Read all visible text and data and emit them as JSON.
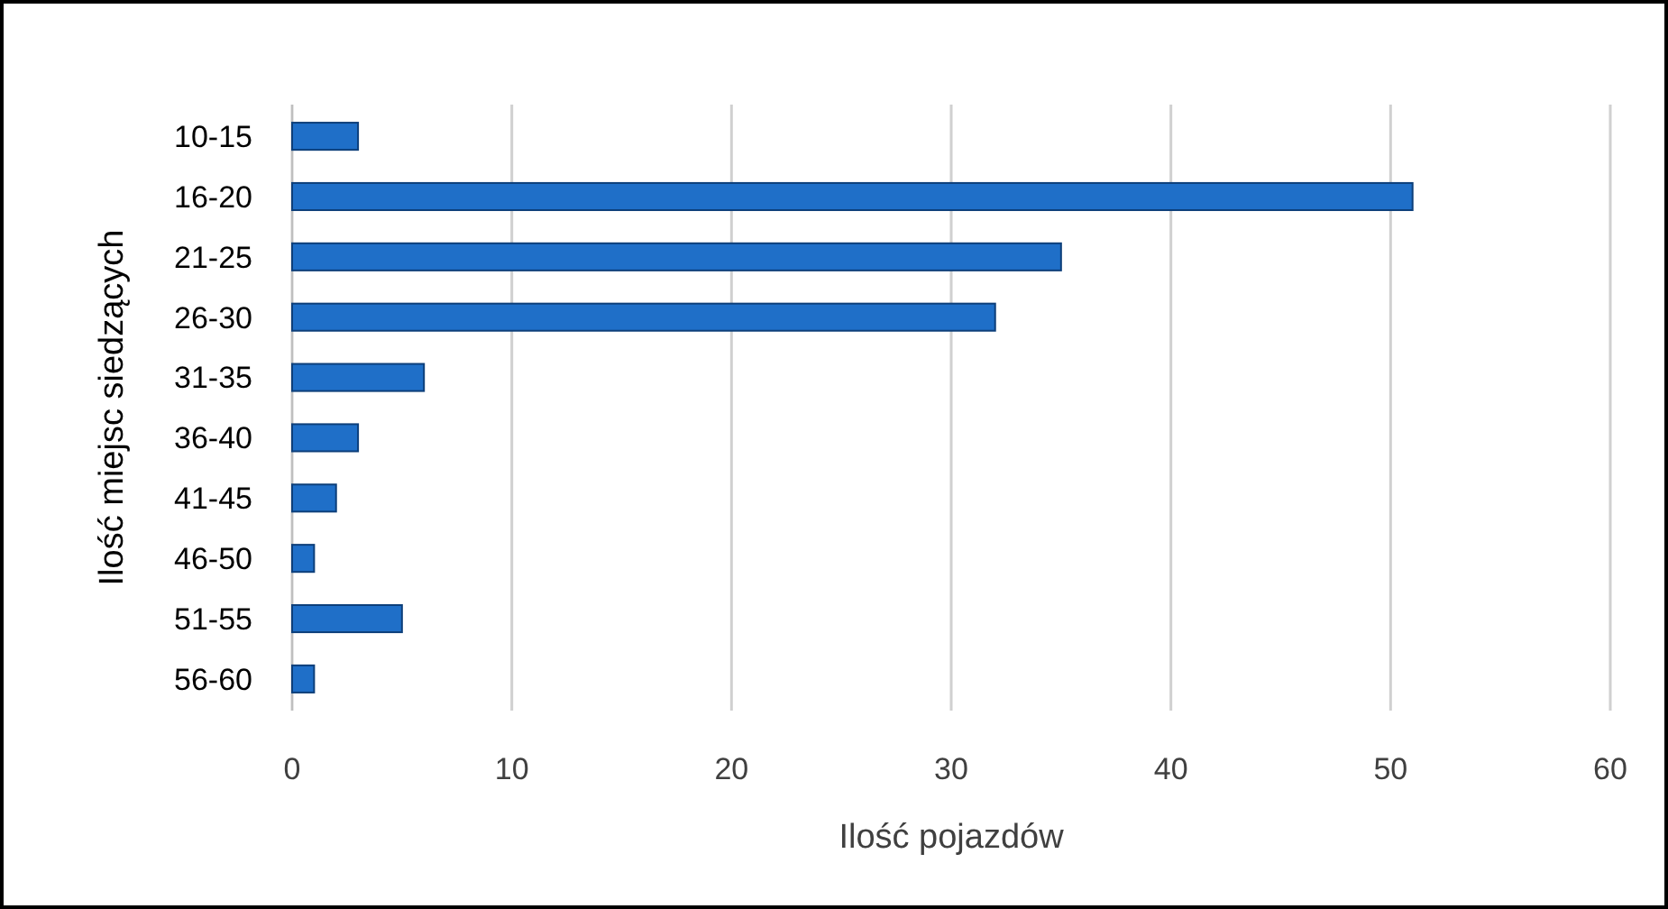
{
  "chart_data": {
    "type": "bar",
    "orientation": "horizontal",
    "xlabel": "Ilość pojazdów",
    "ylabel": "Ilość miejsc siedzących",
    "categories": [
      "10-15",
      "16-20",
      "21-25",
      "26-30",
      "31-35",
      "36-40",
      "41-45",
      "46-50",
      "51-55",
      "56-60"
    ],
    "values": [
      3,
      51,
      35,
      32,
      6,
      3,
      2,
      1,
      5,
      1
    ],
    "color": "#1f6fc8",
    "xlim": [
      0,
      60
    ],
    "xticks": [
      0,
      10,
      20,
      30,
      40,
      50,
      60
    ],
    "grid": "x"
  }
}
